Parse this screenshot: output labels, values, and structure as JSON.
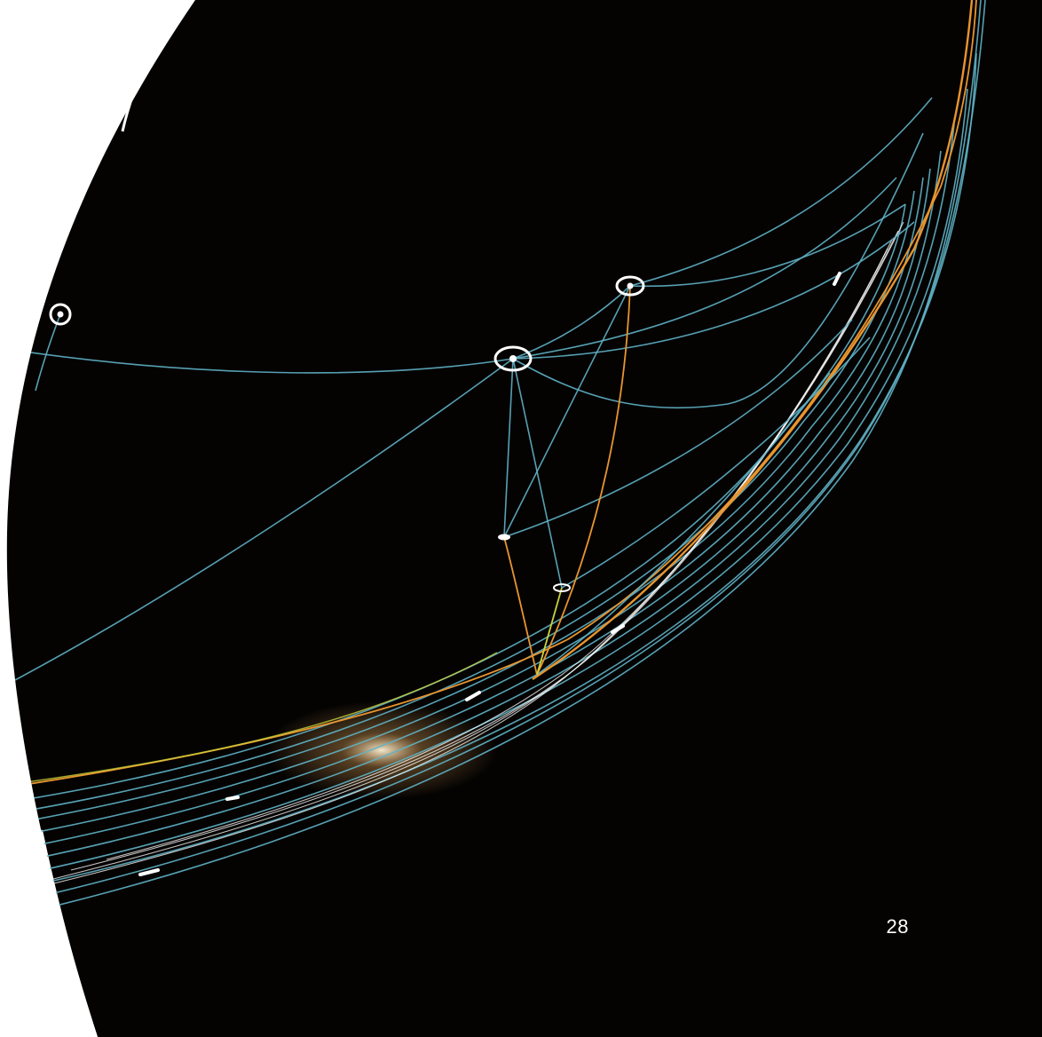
{
  "slide": {
    "number": "28"
  },
  "palette": {
    "background": "#050302",
    "line_primary": "#5fb3c6",
    "line_accent_orange": "#e8952f",
    "line_accent_yellow": "#c9d33a",
    "node": "#ffffff"
  },
  "icons": {
    "node_marker": "ring-node-icon"
  }
}
